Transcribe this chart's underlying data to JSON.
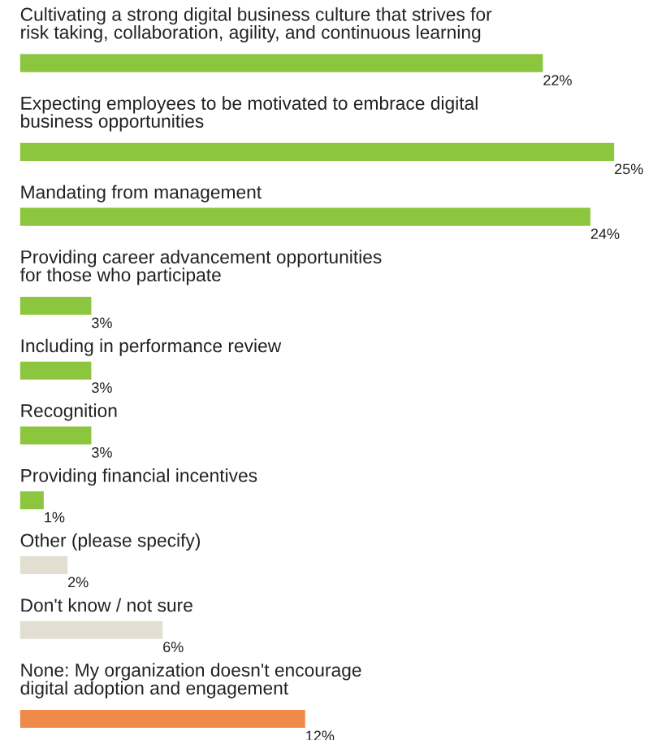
{
  "chart_data": {
    "type": "bar",
    "orientation": "horizontal",
    "categories": [
      "Cultivating a strong digital business culture that strives for\nrisk taking, collaboration, agility, and continuous learning",
      "Expecting employees to be motivated to embrace digital\nbusiness opportunities",
      "Mandating from management",
      "Providing career advancement opportunities\nfor those who participate",
      "Including in performance review",
      "Recognition",
      "Providing financial incentives",
      "Other (please specify)",
      "Don't know / not sure",
      "None: My organization doesn't encourage\ndigital adoption and engagement"
    ],
    "values": [
      22,
      25,
      24,
      3,
      3,
      3,
      1,
      2,
      6,
      12
    ],
    "colors": [
      "#8cc63f",
      "#8cc63f",
      "#8cc63f",
      "#8cc63f",
      "#8cc63f",
      "#8cc63f",
      "#8cc63f",
      "#e2dfd2",
      "#e2dfd2",
      "#f08a4b"
    ],
    "value_labels": [
      "22%",
      "25%",
      "24%",
      "3%",
      "3%",
      "3%",
      "1%",
      "2%",
      "6%",
      "12%"
    ]
  }
}
